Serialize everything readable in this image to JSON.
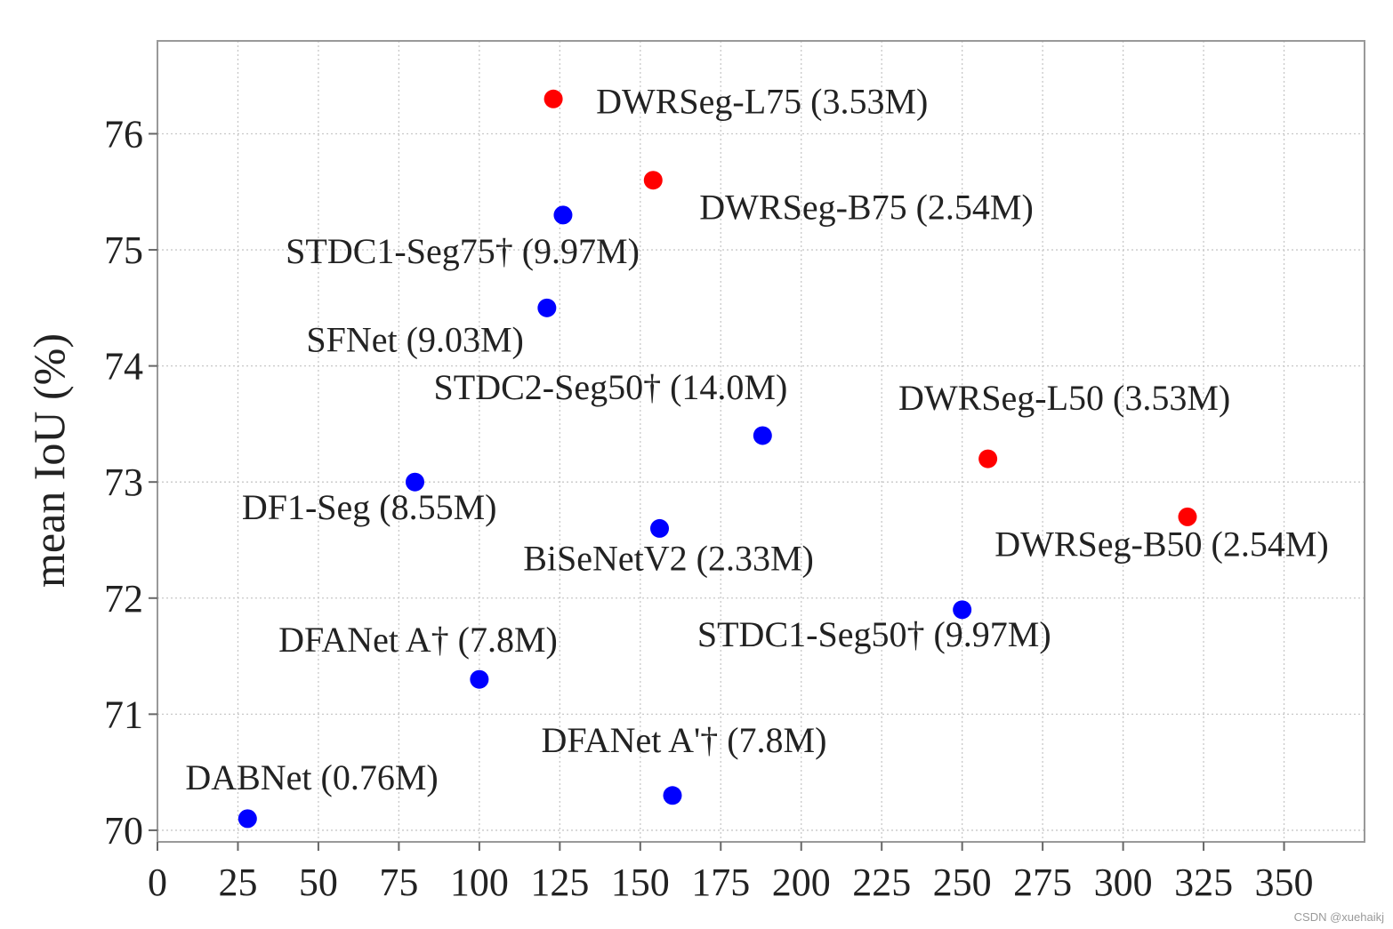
{
  "chart_data": {
    "type": "scatter",
    "title": "",
    "xlabel": "",
    "ylabel": "mean IoU (%)",
    "xlim": [
      0,
      375
    ],
    "ylim": [
      69.9,
      76.8
    ],
    "x_ticks": [
      0,
      25,
      50,
      75,
      100,
      125,
      150,
      175,
      200,
      225,
      250,
      275,
      300,
      325,
      350
    ],
    "y_ticks": [
      70,
      71,
      72,
      73,
      74,
      75,
      76
    ],
    "grid": true,
    "colors": {
      "ours": "#ff0000",
      "others": "#0000ff",
      "grid": "#c8c8c8",
      "axes": "#999999"
    },
    "points": [
      {
        "label": "DWRSeg-L75 (3.53M)",
        "x": 123,
        "y": 76.3,
        "group": "ours",
        "label_pos": "right"
      },
      {
        "label": "DWRSeg-B75 (2.54M)",
        "x": 154,
        "y": 75.6,
        "group": "ours",
        "label_pos": "below-right"
      },
      {
        "label": "STDC1-Seg75† (9.97M)",
        "x": 126,
        "y": 75.3,
        "group": "others",
        "label_pos": "below-left"
      },
      {
        "label": "SFNet (9.03M)",
        "x": 121,
        "y": 74.5,
        "group": "others",
        "label_pos": "below-left"
      },
      {
        "label": "STDC2-Seg50† (14.0M)",
        "x": 188,
        "y": 73.4,
        "group": "others",
        "label_pos": "above-left"
      },
      {
        "label": "DWRSeg-L50 (3.53M)",
        "x": 258,
        "y": 73.2,
        "group": "ours",
        "label_pos": "above"
      },
      {
        "label": "DF1-Seg (8.55M)",
        "x": 80,
        "y": 73.0,
        "group": "others",
        "label_pos": "below-left"
      },
      {
        "label": "BiSeNetV2 (2.33M)",
        "x": 156,
        "y": 72.6,
        "group": "others",
        "label_pos": "below"
      },
      {
        "label": "DWRSeg-B50 (2.54M)",
        "x": 320,
        "y": 72.7,
        "group": "ours",
        "label_pos": "below"
      },
      {
        "label": "STDC1-Seg50† (9.97M)",
        "x": 250,
        "y": 71.9,
        "group": "others",
        "label_pos": "below-left"
      },
      {
        "label": "DFANet A† (7.8M)",
        "x": 100,
        "y": 71.3,
        "group": "others",
        "label_pos": "above-left"
      },
      {
        "label": "DFANet A'† (7.8M)",
        "x": 160,
        "y": 70.3,
        "group": "others",
        "label_pos": "above"
      },
      {
        "label": "DABNet (0.76M)",
        "x": 28,
        "y": 70.1,
        "group": "others",
        "label_pos": "above-right"
      }
    ]
  },
  "watermark": "CSDN @xuehaikj"
}
